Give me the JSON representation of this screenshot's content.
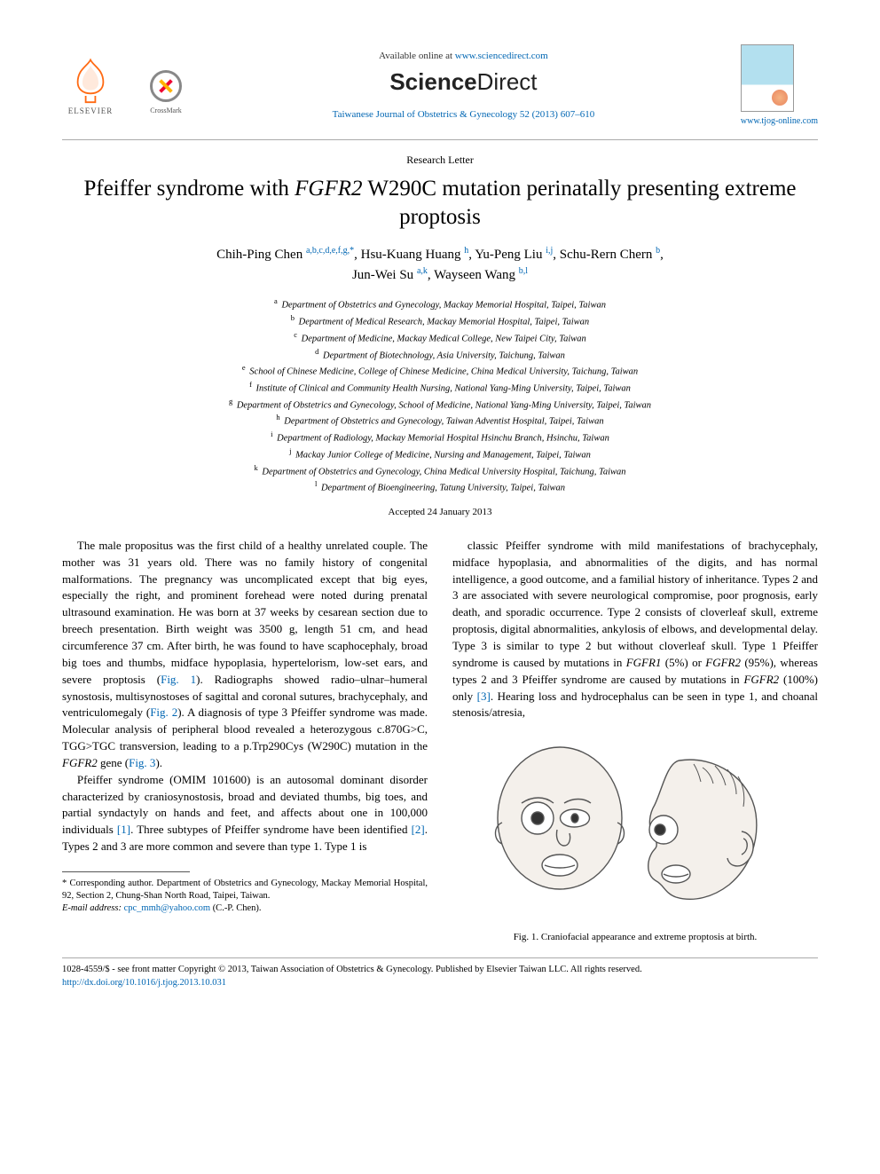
{
  "header": {
    "available_prefix": "Available online at ",
    "available_url": "www.sciencedirect.com",
    "sd_brand_bold": "Science",
    "sd_brand_light": "Direct",
    "journal_line": "Taiwanese Journal of Obstetrics & Gynecology 52 (2013) 607–610",
    "journal_url": "www.tjog-online.com",
    "elsevier": "ELSEVIER",
    "crossmark": "CrossMark"
  },
  "article": {
    "type": "Research Letter",
    "title_pre": "Pfeiffer syndrome with ",
    "title_gene": "FGFR2",
    "title_post": " W290C mutation perinatally presenting extreme proptosis",
    "accepted": "Accepted 24 January 2013"
  },
  "authors": [
    {
      "name": "Chih-Ping Chen",
      "sup": "a,b,c,d,e,f,g,",
      "corr": true
    },
    {
      "name": "Hsu-Kuang Huang",
      "sup": "h"
    },
    {
      "name": "Yu-Peng Liu",
      "sup": "i,j"
    },
    {
      "name": "Schu-Rern Chern",
      "sup": "b"
    },
    {
      "name": "Jun-Wei Su",
      "sup": "a,k"
    },
    {
      "name": "Wayseen Wang",
      "sup": "b,l"
    }
  ],
  "affiliations": [
    {
      "k": "a",
      "t": "Department of Obstetrics and Gynecology, Mackay Memorial Hospital, Taipei, Taiwan"
    },
    {
      "k": "b",
      "t": "Department of Medical Research, Mackay Memorial Hospital, Taipei, Taiwan"
    },
    {
      "k": "c",
      "t": "Department of Medicine, Mackay Medical College, New Taipei City, Taiwan"
    },
    {
      "k": "d",
      "t": "Department of Biotechnology, Asia University, Taichung, Taiwan"
    },
    {
      "k": "e",
      "t": "School of Chinese Medicine, College of Chinese Medicine, China Medical University, Taichung, Taiwan"
    },
    {
      "k": "f",
      "t": "Institute of Clinical and Community Health Nursing, National Yang-Ming University, Taipei, Taiwan"
    },
    {
      "k": "g",
      "t": "Department of Obstetrics and Gynecology, School of Medicine, National Yang-Ming University, Taipei, Taiwan"
    },
    {
      "k": "h",
      "t": "Department of Obstetrics and Gynecology, Taiwan Adventist Hospital, Taipei, Taiwan"
    },
    {
      "k": "i",
      "t": "Department of Radiology, Mackay Memorial Hospital Hsinchu Branch, Hsinchu, Taiwan"
    },
    {
      "k": "j",
      "t": "Mackay Junior College of Medicine, Nursing and Management, Taipei, Taiwan"
    },
    {
      "k": "k",
      "t": "Department of Obstetrics and Gynecology, China Medical University Hospital, Taichung, Taiwan"
    },
    {
      "k": "l",
      "t": "Department of Bioengineering, Tatung University, Taipei, Taiwan"
    }
  ],
  "body": {
    "p1": "The male propositus was the first child of a healthy unrelated couple. The mother was 31 years old. There was no family history of congenital malformations. The pregnancy was uncomplicated except that big eyes, especially the right, and prominent forehead were noted during prenatal ultrasound examination. He was born at 37 weeks by cesarean section due to breech presentation. Birth weight was 3500 g, length 51 cm, and head circumference 37 cm. After birth, he was found to have scaphocephaly, broad big toes and thumbs, midface hypoplasia, hypertelorism, low-set ears, and severe proptosis (",
    "fig1_ref": "Fig. 1",
    "p1b": "). Radiographs showed radio–ulnar–humeral synostosis, multisynostoses of sagittal and coronal sutures, brachycephaly, and ventriculomegaly (",
    "fig2_ref": "Fig. 2",
    "p1c": "). A diagnosis of type 3 Pfeiffer syndrome was made. Molecular analysis of peripheral blood revealed a heterozygous c.870G>C, TGG>TGC transversion, leading to a p.Trp290Cys (W290C) mutation in the ",
    "p1_gene": "FGFR2",
    "p1d": " gene (",
    "fig3_ref": "Fig. 3",
    "p1e": ").",
    "p2a": "Pfeiffer syndrome (OMIM 101600) is an autosomal dominant disorder characterized by craniosynostosis, broad and deviated thumbs, big toes, and partial syndactyly on hands and feet, and affects about one in 100,000 individuals ",
    "ref1": "[1]",
    "p2b": ". Three subtypes of Pfeiffer syndrome have been identified ",
    "ref2": "[2]",
    "p2c": ". Types 2 and 3 are more common and severe than type 1. Type 1 is",
    "p3a": "classic Pfeiffer syndrome with mild manifestations of brachycephaly, midface hypoplasia, and abnormalities of the digits, and has normal intelligence, a good outcome, and a familial history of inheritance. Types 2 and 3 are associated with severe neurological compromise, poor prognosis, early death, and sporadic occurrence. Type 2 consists of cloverleaf skull, extreme proptosis, digital abnormalities, ankylosis of elbows, and developmental delay. Type 3 is similar to type 2 but without cloverleaf skull. Type 1 Pfeiffer syndrome is caused by mutations in ",
    "p3_gene1": "FGFR1",
    "p3b": " (5%) or ",
    "p3_gene2": "FGFR2",
    "p3c": " (95%), whereas types 2 and 3 Pfeiffer syndrome are caused by mutations in ",
    "p3_gene3": "FGFR2",
    "p3d": " (100%) only ",
    "ref3": "[3]",
    "p3e": ". Hearing loss and hydrocephalus can be seen in type 1, and choanal stenosis/atresia,"
  },
  "figure1": {
    "caption": "Fig. 1. Craniofacial appearance and extreme proptosis at birth.",
    "stroke": "#555555",
    "fill": "#f4f0eb"
  },
  "footnote": {
    "corr": "* Corresponding author. Department of Obstetrics and Gynecology, Mackay Memorial Hospital, 92, Section 2, Chung-Shan North Road, Taipei, Taiwan.",
    "email_label": "E-mail address: ",
    "email": "cpc_mmh@yahoo.com",
    "email_suffix": " (C.-P. Chen)."
  },
  "copyright": {
    "line1": "1028-4559/$ - see front matter Copyright © 2013, Taiwan Association of Obstetrics & Gynecology. Published by Elsevier Taiwan LLC. All rights reserved.",
    "doi": "http://dx.doi.org/10.1016/j.tjog.2013.10.031"
  },
  "colors": {
    "link": "#0066b3",
    "elsevier_orange": "#ff6a13"
  }
}
